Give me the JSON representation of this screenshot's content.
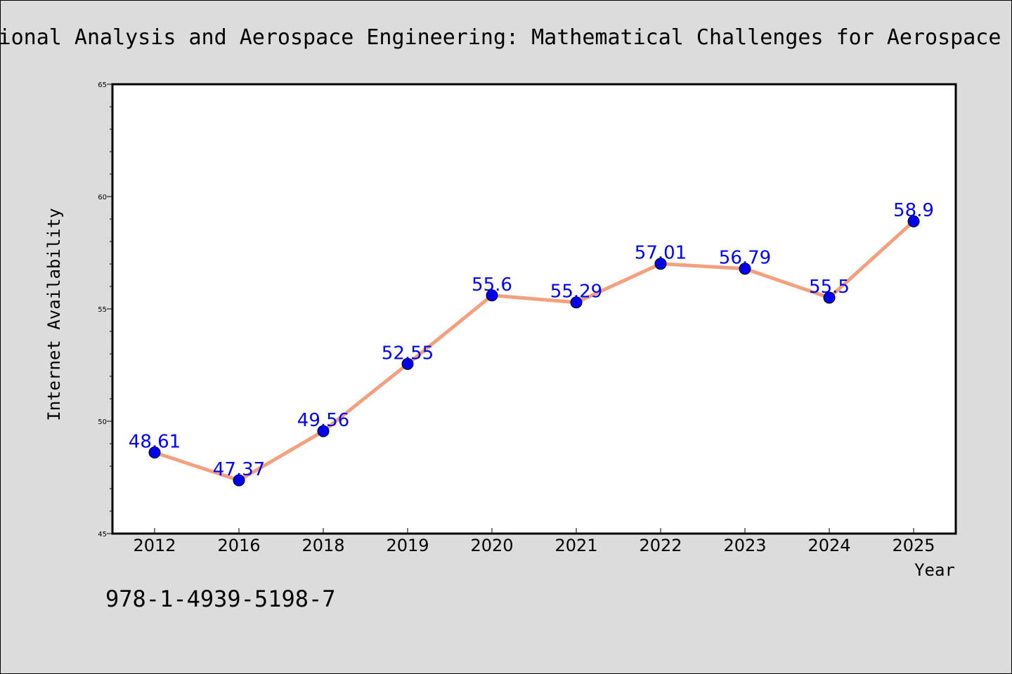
{
  "page": {
    "title": "Variational Analysis and Aerospace Engineering: Mathematical Challenges for Aerospace Design",
    "footer": "978-1-4939-5198-7",
    "background_color": "#dcdcdc"
  },
  "chart_data": {
    "type": "line",
    "title": "Variational Analysis and Aerospace Engineering: Mathematical Challenges for Aerospace Design",
    "xlabel": "Year",
    "ylabel": "Internet Availability",
    "categories": [
      "2012",
      "2016",
      "2018",
      "2019",
      "2020",
      "2021",
      "2022",
      "2023",
      "2024",
      "2025"
    ],
    "series": [
      {
        "values": [
          48.61,
          47.37,
          49.56,
          52.55,
          55.6,
          55.29,
          57.01,
          56.79,
          55.5,
          58.9
        ],
        "labels": [
          "48.61",
          "47.37",
          "49.56",
          "52.55",
          "55.6",
          "55.29",
          "57.01",
          "56.79",
          "55.5",
          "58.9"
        ],
        "line_color": "#f4a07e",
        "marker_color": "#0000ee",
        "label_color": "#0000ff"
      }
    ],
    "ylim": [
      45,
      65
    ],
    "yticks": [
      45,
      50,
      55,
      60,
      65
    ],
    "ytick_labels": [
      "45",
      "50",
      "55",
      "60",
      "65"
    ],
    "grid": false,
    "legend": "none"
  }
}
